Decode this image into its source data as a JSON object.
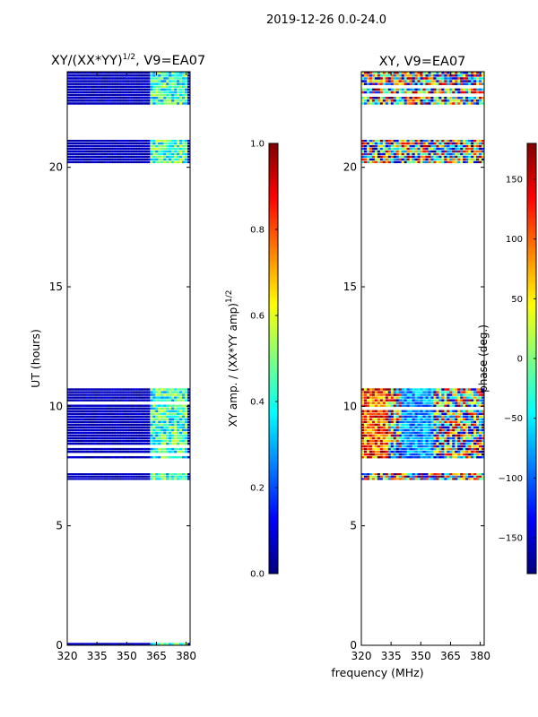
{
  "figure": {
    "suptitle": "2019-12-26 0.0-24.0",
    "xlabel_shared": "frequency (MHz)"
  },
  "colors": {
    "jet_stops": [
      "#00007f",
      "#0000ff",
      "#007fff",
      "#00ffff",
      "#7fff7f",
      "#ffff00",
      "#ff7f00",
      "#ff0000",
      "#7f0000"
    ]
  },
  "chart_data": [
    {
      "type": "heatmap",
      "title_main": "XY/(XX*YY)",
      "title_sup": "1/2",
      "title_tail": ", V9=EA07",
      "ylabel": "UT (hours)",
      "xlim": [
        320,
        382
      ],
      "ylim": [
        0,
        24
      ],
      "xticks": [
        320,
        335,
        350,
        365,
        380
      ],
      "yticks": [
        0,
        5,
        10,
        15,
        20
      ],
      "valid_bands_ut": [
        [
          0.0,
          0.1
        ],
        [
          6.9,
          7.3
        ],
        [
          7.8,
          10.75
        ],
        [
          20.15,
          21.15
        ],
        [
          22.6,
          24.0
        ]
      ],
      "colorbar": {
        "label_main": "XY amp. / (XX*YY amp)",
        "label_sup": "1/2",
        "range": [
          0.0,
          1.0
        ],
        "ticks": [
          "0.0",
          "0.2",
          "0.4",
          "0.6",
          "0.8",
          "1.0"
        ]
      }
    },
    {
      "type": "heatmap",
      "title": "XY, V9=EA07",
      "xlim": [
        320,
        382
      ],
      "ylim": [
        0,
        24
      ],
      "xticks": [
        320,
        335,
        350,
        365,
        380
      ],
      "yticks": [
        0,
        5,
        10,
        15,
        20
      ],
      "valid_bands_ut": [
        [
          0.0,
          0.1
        ],
        [
          6.9,
          7.3
        ],
        [
          7.8,
          10.75
        ],
        [
          20.15,
          21.15
        ],
        [
          22.6,
          24.0
        ]
      ],
      "colorbar": {
        "label": "phase (deg.)",
        "range": [
          -180,
          180
        ],
        "ticks": [
          "−150",
          "−100",
          "−50",
          "0",
          "50",
          "100",
          "150"
        ]
      }
    }
  ]
}
